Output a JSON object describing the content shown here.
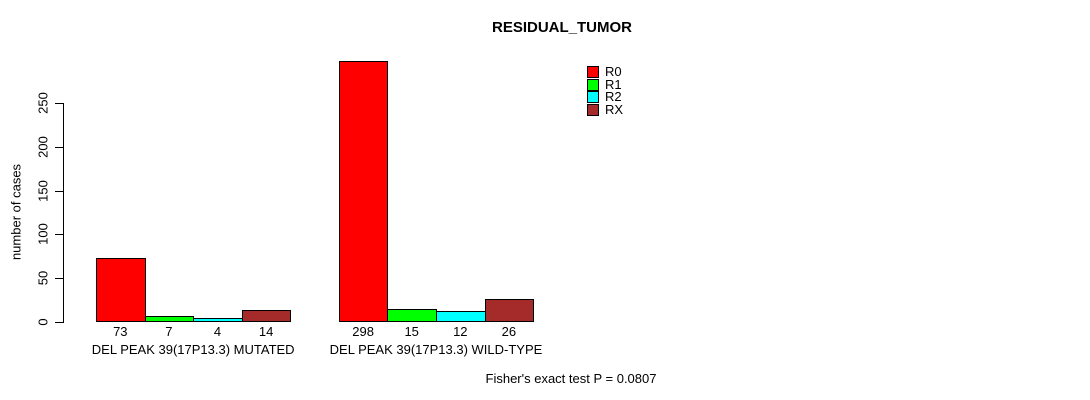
{
  "title": "RESIDUAL_TUMOR",
  "chart_data": {
    "type": "bar",
    "title": "RESIDUAL_TUMOR",
    "xlabel": "",
    "ylabel": "number of cases",
    "ylim": [
      0,
      250
    ],
    "yticks": [
      0,
      50,
      100,
      150,
      200,
      250
    ],
    "grid": false,
    "legend_position": "top-right",
    "categories": [
      "DEL PEAK 39(17P13.3) MUTATED",
      "DEL PEAK 39(17P13.3) WILD-TYPE"
    ],
    "series": [
      {
        "name": "R0",
        "color": "#ff0000",
        "values": [
          73,
          298
        ]
      },
      {
        "name": "R1",
        "color": "#00ff00",
        "values": [
          7,
          15
        ]
      },
      {
        "name": "R2",
        "color": "#00ffff",
        "values": [
          4,
          12
        ]
      },
      {
        "name": "RX",
        "color": "#a52a2a",
        "values": [
          14,
          26
        ]
      }
    ],
    "bar_value_labels_shown": true,
    "annotation": "Fisher's exact test P = 0.0807"
  },
  "footer": {
    "stat_text": "Fisher's exact test P = 0.0807"
  }
}
